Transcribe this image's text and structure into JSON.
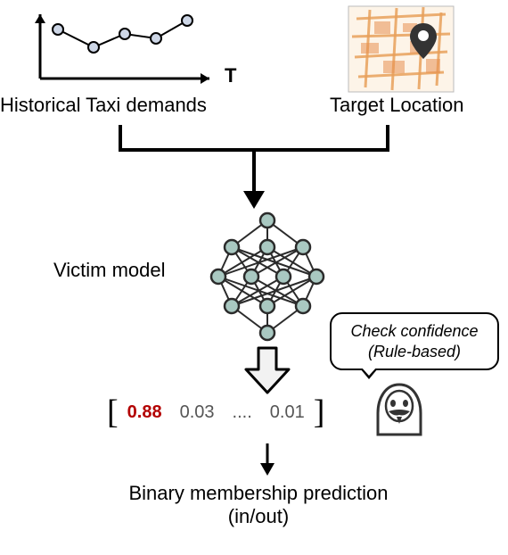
{
  "inputs": {
    "left_label": "Historical Taxi demands",
    "right_label": "Target Location",
    "axis_label": "T"
  },
  "model_label": "Victim model",
  "speech": {
    "line1": "Check confidence",
    "line2": "(Rule-based)"
  },
  "output_vector": {
    "values": [
      "0.88",
      "0.03",
      "....",
      "0.01"
    ],
    "highlight_index": 0,
    "highlight_color": "#b30000",
    "normal_color": "#555555"
  },
  "result": {
    "line1": "Binary membership prediction",
    "line2": "(in/out)"
  },
  "chart": {
    "axis_color": "#000000",
    "axis_width": 3,
    "point_fill": "#cdd6e6",
    "point_stroke": "#000000",
    "line_color": "#000000",
    "points_x": [
      45,
      85,
      120,
      155,
      190
    ],
    "points_y": [
      25,
      45,
      30,
      35,
      15
    ]
  },
  "map_thumb": {
    "bg": "#fdf4e8",
    "road": "#e8a05a",
    "block": "#e89050",
    "border": "#bbbbbb",
    "pin": "#333333"
  },
  "nn": {
    "node_fill": "#a9c8c1",
    "node_stroke": "#2b2b2b",
    "edge": "#2b2b2b"
  },
  "hacker": {
    "stroke": "#333333",
    "fill": "#ffffff"
  },
  "flow_arrow_color": "#000000"
}
